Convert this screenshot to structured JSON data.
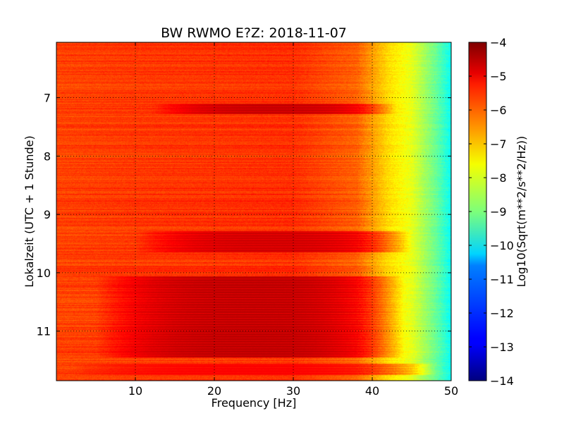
{
  "chart_data": {
    "type": "heatmap",
    "title": "BW RWMO E?Z: 2018-11-07",
    "xlabel": "Frequency [Hz]",
    "ylabel": "Lokalzeit (UTC + 1 Stunde)",
    "colorbar_label": "Log10(Sqrt(m**2/s**2/Hz))",
    "xlim": [
      0,
      50
    ],
    "ylim": [
      6.05,
      11.85
    ],
    "y_inverted": true,
    "x_ticks": [
      10,
      20,
      30,
      40,
      50
    ],
    "y_ticks": [
      7,
      8,
      9,
      10,
      11
    ],
    "colorbar_range": [
      -14,
      -4
    ],
    "colorbar_ticks": [
      -4,
      -5,
      -6,
      -7,
      -8,
      -9,
      -10,
      -11,
      -12,
      -13,
      -14
    ],
    "colormap": "jet",
    "grid": true,
    "bands": [
      {
        "t_start": 7.1,
        "t_end": 7.28,
        "f_start": 15,
        "f_end": 40,
        "value": -4.6
      },
      {
        "t_start": 9.28,
        "t_end": 9.65,
        "f_start": 13,
        "f_end": 42,
        "value": -4.7
      },
      {
        "t_start": 10.05,
        "t_end": 11.45,
        "f_start": 8,
        "f_end": 41,
        "value": -4.5
      },
      {
        "t_start": 11.55,
        "t_end": 11.75,
        "f_start": 5,
        "f_end": 45,
        "value": -5.2
      }
    ],
    "spectral_profile": [
      {
        "f": 0,
        "value": -5.9
      },
      {
        "f": 10,
        "value": -5.8
      },
      {
        "f": 30,
        "value": -5.7
      },
      {
        "f": 38,
        "value": -6.2
      },
      {
        "f": 42,
        "value": -7.4
      },
      {
        "f": 45,
        "value": -8.0
      },
      {
        "f": 48,
        "value": -9.2
      },
      {
        "f": 50,
        "value": -10.2
      }
    ]
  }
}
